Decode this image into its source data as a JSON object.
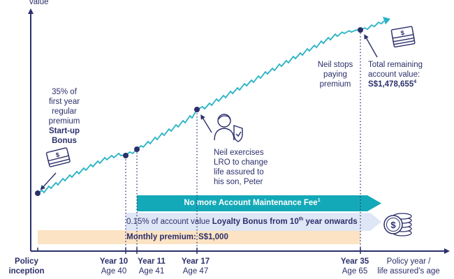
{
  "axes": {
    "y_label": "value",
    "x_label_line1": "Policy year /",
    "x_label_line2": "life assured’s age"
  },
  "ticks": {
    "inception_line1": "Policy",
    "inception_line2": "inception",
    "year10": "Year 10",
    "age40": "Age 40",
    "year11": "Year 11",
    "age41": "Age 41",
    "year17": "Year 17",
    "age47": "Age 47",
    "year35": "Year 35",
    "age65": "Age 65"
  },
  "annotations": {
    "startup_line1": "35% of",
    "startup_line2": "first year",
    "startup_line3": "regular",
    "startup_line4": "premium",
    "startup_line5": "Start-up",
    "startup_line6": "Bonus",
    "lro_line1": "Neil exercises",
    "lro_line2": "LRO to change",
    "lro_line3": "life assured to",
    "lro_line4": "his son, Peter",
    "stop_line1": "Neil stops",
    "stop_line2": "paying",
    "stop_line3": "premium",
    "total_line1": "Total remaining",
    "total_line2": "account value:",
    "total_value": "S$1,478,655",
    "total_sup": "4"
  },
  "bars": {
    "maintenance_text": "No more Account Maintenance Fee",
    "maintenance_sup": "1",
    "loyalty_pre": "0.15% of account value ",
    "loyalty_bold": "Loyalty Bonus from 10",
    "loyalty_sup": "th",
    "loyalty_post": " year onwards",
    "premium_text": "Monthly premium: S$1,000"
  },
  "colors": {
    "navy": "#2b2f6b",
    "teal": "#25b3c4",
    "maintenance_bar": "#14a9b8",
    "loyalty_bar": "#dfe7f6",
    "premium_bar": "#fbe3c3"
  },
  "icons": {
    "startup": "cash-stack-icon",
    "peter": "person-shield-icon",
    "total": "cash-stack-icon",
    "loyalty": "coin-stack-icon"
  }
}
